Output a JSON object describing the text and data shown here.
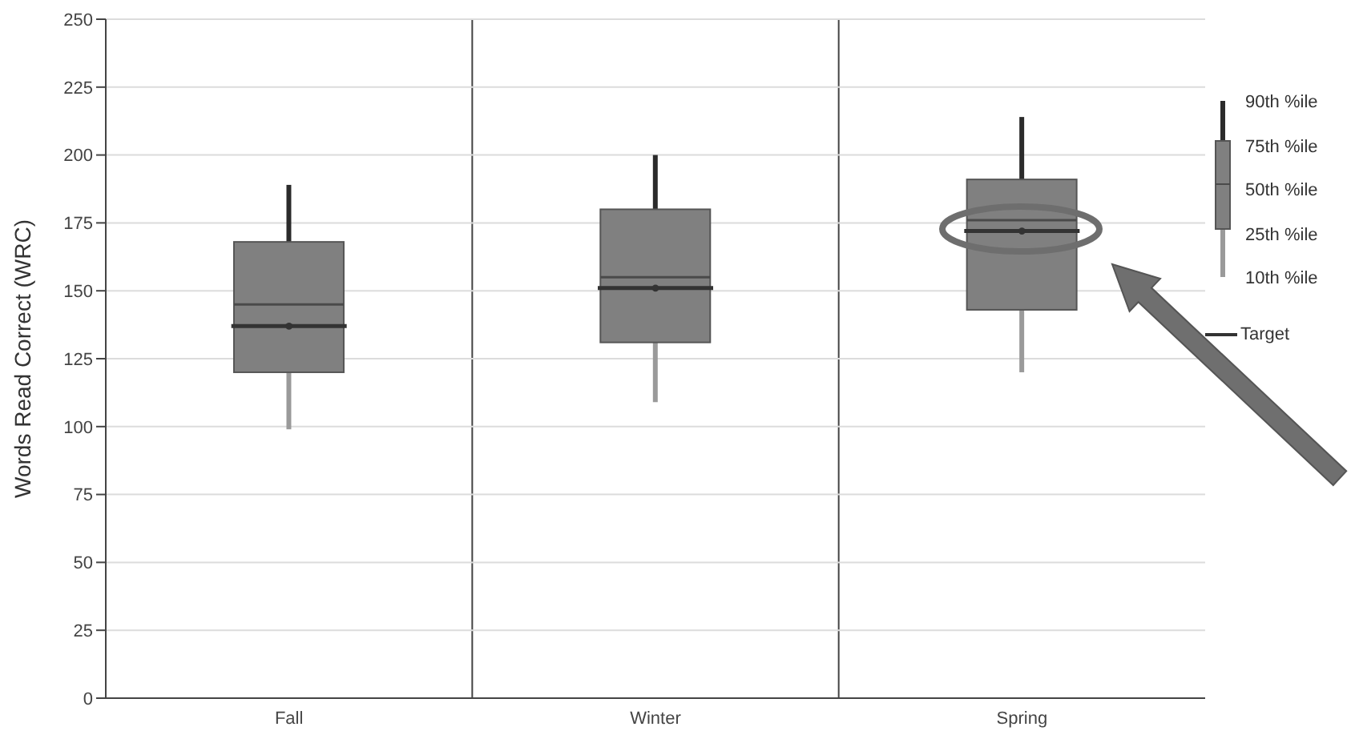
{
  "chart_data": {
    "type": "box",
    "ylabel": "Words Read Correct (WRC)",
    "categories": [
      "Fall",
      "Winter",
      "Spring"
    ],
    "ylim": [
      0,
      250
    ],
    "yticks": [
      0,
      25,
      50,
      75,
      100,
      125,
      150,
      175,
      200,
      225,
      250
    ],
    "grid": true,
    "legend": "right",
    "annotations": [
      "90th %ile",
      "75th %ile",
      "50th %ile",
      "25th %ile",
      "10th %ile"
    ],
    "series": [
      {
        "type": "box",
        "color": "#808080",
        "boxes": [
          {
            "low": 99,
            "q1": 120,
            "median": 145,
            "q3": 168,
            "high": 189
          },
          {
            "low": 109,
            "q1": 131,
            "median": 155,
            "q3": 180,
            "high": 200
          },
          {
            "low": 120,
            "q1": 143,
            "median": 176,
            "q3": 191,
            "high": 214
          }
        ]
      },
      {
        "type": "scatter",
        "name": "Target",
        "color": "#333333",
        "x": [
          "Fall",
          "Winter",
          "Spring"
        ],
        "values": [
          137,
          151,
          172
        ]
      }
    ]
  }
}
